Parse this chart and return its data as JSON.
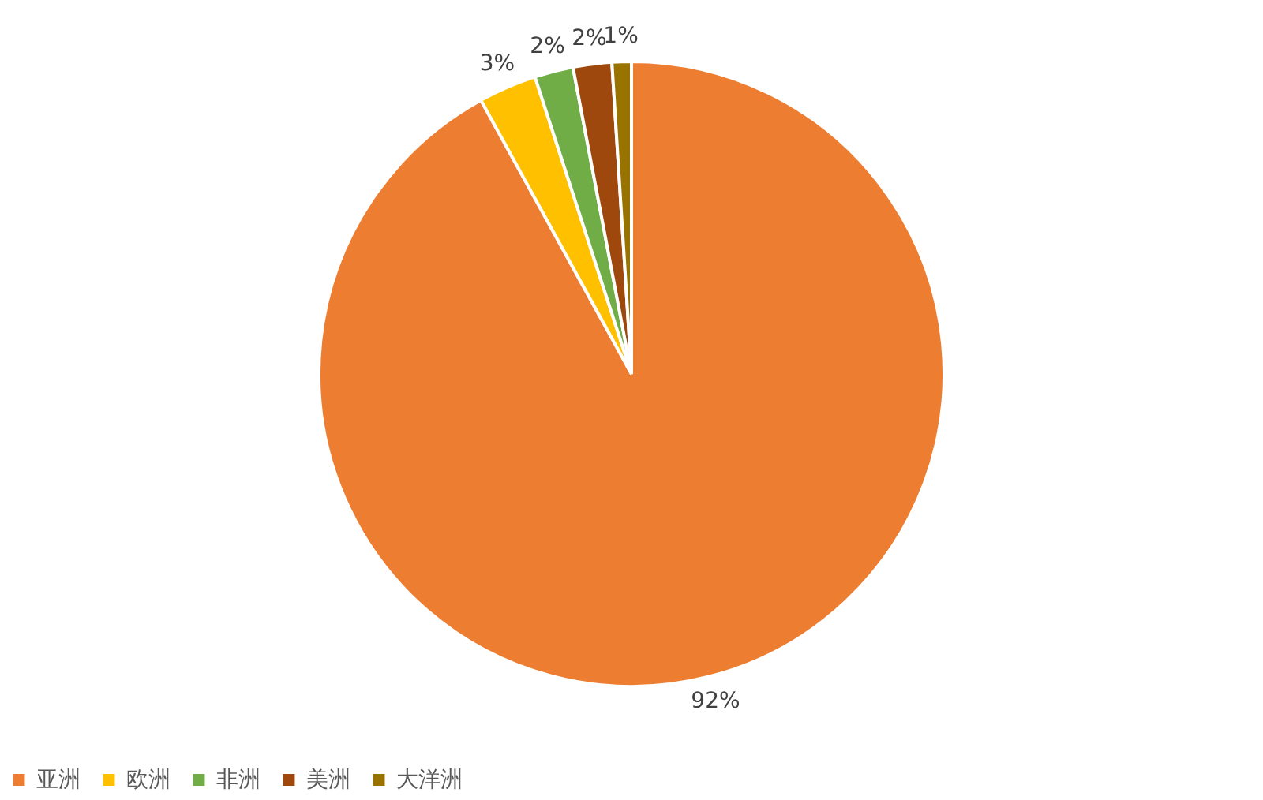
{
  "chart_data": {
    "type": "pie",
    "categories": [
      "亚洲",
      "欧洲",
      "非洲",
      "美洲",
      "大洋洲"
    ],
    "values": [
      92,
      3,
      2,
      2,
      1
    ],
    "colors": [
      "#ed7d31",
      "#ffc000",
      "#70ad47",
      "#9e480e",
      "#997300"
    ],
    "value_labels": [
      "92%",
      "3%",
      "2%",
      "2%",
      "1%"
    ],
    "legend": "bottom"
  }
}
